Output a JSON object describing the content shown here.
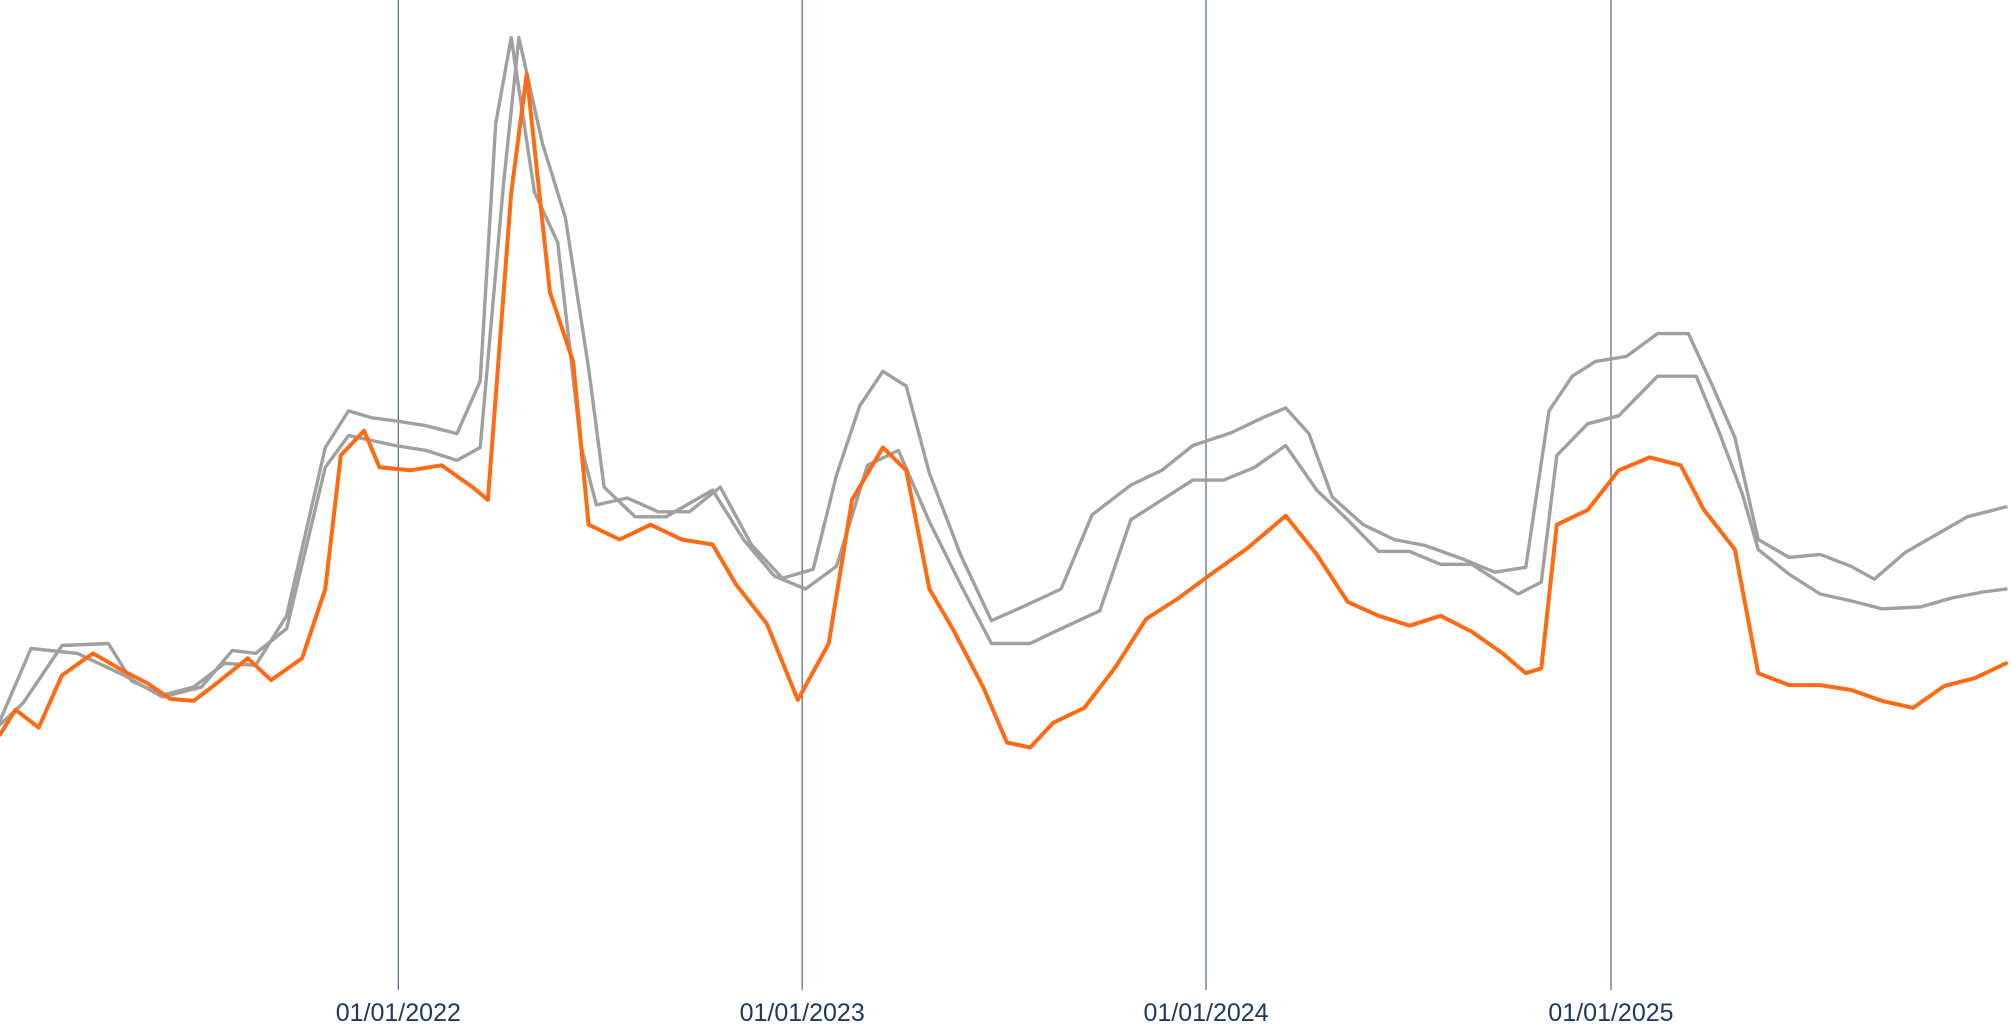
{
  "chart_data": {
    "type": "line",
    "title": "",
    "xlabel": "",
    "ylabel": "",
    "x_axis": {
      "scale": "time",
      "domain": [
        "2021-01-06",
        "2025-12-24"
      ],
      "ticks": [
        {
          "date": "2022-01-01",
          "label": "01/01/2022"
        },
        {
          "date": "2023-01-01",
          "label": "01/01/2023"
        },
        {
          "date": "2024-01-01",
          "label": "01/01/2024"
        },
        {
          "date": "2025-01-01",
          "label": "01/01/2025"
        }
      ]
    },
    "ylim": [
      0,
      1000
    ],
    "y_axis_labels_visible": false,
    "gridlines": "vertical at x ticks",
    "legend": "none",
    "colors": {
      "highlight": "#FF6A13",
      "reference": "#A0A0A0",
      "gridline": "#5E7287",
      "tick_text": "#1F3A60"
    },
    "series": [
      {
        "color": "#A0A0A0",
        "points": [
          [
            "2021-01-06",
            268
          ],
          [
            "2021-01-27",
            290
          ],
          [
            "2021-03-03",
            348
          ],
          [
            "2021-04-14",
            350
          ],
          [
            "2021-05-05",
            312
          ],
          [
            "2021-06-02",
            298
          ],
          [
            "2021-06-30",
            306
          ],
          [
            "2021-07-28",
            330
          ],
          [
            "2021-08-25",
            328
          ],
          [
            "2021-09-22",
            378
          ],
          [
            "2021-10-27",
            548
          ],
          [
            "2021-11-17",
            585
          ],
          [
            "2021-12-08",
            578
          ],
          [
            "2021-12-29",
            575
          ],
          [
            "2022-01-26",
            570
          ],
          [
            "2022-02-23",
            562
          ],
          [
            "2022-03-16",
            615
          ],
          [
            "2022-03-30",
            875
          ],
          [
            "2022-04-13",
            962
          ],
          [
            "2022-05-04",
            806
          ],
          [
            "2022-05-25",
            755
          ],
          [
            "2022-06-15",
            550
          ],
          [
            "2022-06-29",
            490
          ],
          [
            "2022-07-27",
            497
          ],
          [
            "2022-08-24",
            483
          ],
          [
            "2022-09-21",
            483
          ],
          [
            "2022-10-19",
            508
          ],
          [
            "2022-11-16",
            450
          ],
          [
            "2022-12-14",
            416
          ],
          [
            "2023-01-11",
            425
          ],
          [
            "2023-02-01",
            520
          ],
          [
            "2023-02-22",
            590
          ],
          [
            "2023-03-15",
            625
          ],
          [
            "2023-04-05",
            610
          ],
          [
            "2023-04-26",
            522
          ],
          [
            "2023-05-24",
            440
          ],
          [
            "2023-06-21",
            373
          ],
          [
            "2023-07-19",
            387
          ],
          [
            "2023-08-23",
            405
          ],
          [
            "2023-09-20",
            480
          ],
          [
            "2023-10-25",
            510
          ],
          [
            "2023-11-22",
            525
          ],
          [
            "2023-12-20",
            550
          ],
          [
            "2024-01-24",
            563
          ],
          [
            "2024-02-21",
            578
          ],
          [
            "2024-03-13",
            588
          ],
          [
            "2024-04-03",
            562
          ],
          [
            "2024-04-24",
            498
          ],
          [
            "2024-05-22",
            470
          ],
          [
            "2024-06-19",
            455
          ],
          [
            "2024-07-17",
            449
          ],
          [
            "2024-08-21",
            435
          ],
          [
            "2024-09-18",
            422
          ],
          [
            "2024-10-16",
            427
          ],
          [
            "2024-11-06",
            585
          ],
          [
            "2024-11-27",
            620
          ],
          [
            "2024-12-18",
            635
          ],
          [
            "2025-01-15",
            640
          ],
          [
            "2025-02-12",
            663
          ],
          [
            "2025-03-12",
            663
          ],
          [
            "2025-04-02",
            612
          ],
          [
            "2025-04-23",
            558
          ],
          [
            "2025-05-14",
            455
          ],
          [
            "2025-06-11",
            437
          ],
          [
            "2025-07-09",
            440
          ],
          [
            "2025-08-06",
            428
          ],
          [
            "2025-08-27",
            415
          ],
          [
            "2025-09-24",
            442
          ],
          [
            "2025-10-22",
            460
          ],
          [
            "2025-11-19",
            478
          ],
          [
            "2025-12-24",
            488
          ]
        ]
      },
      {
        "color": "#A0A0A0",
        "points": [
          [
            "2021-01-06",
            272
          ],
          [
            "2021-02-03",
            345
          ],
          [
            "2021-03-17",
            340
          ],
          [
            "2021-04-28",
            318
          ],
          [
            "2021-06-02",
            296
          ],
          [
            "2021-07-07",
            306
          ],
          [
            "2021-08-04",
            343
          ],
          [
            "2021-08-25",
            340
          ],
          [
            "2021-09-22",
            365
          ],
          [
            "2021-10-27",
            528
          ],
          [
            "2021-11-17",
            560
          ],
          [
            "2021-12-08",
            555
          ],
          [
            "2021-12-29",
            550
          ],
          [
            "2022-01-26",
            545
          ],
          [
            "2022-02-23",
            535
          ],
          [
            "2022-03-16",
            548
          ],
          [
            "2022-04-06",
            813
          ],
          [
            "2022-04-20",
            962
          ],
          [
            "2022-05-11",
            856
          ],
          [
            "2022-06-01",
            780
          ],
          [
            "2022-06-22",
            628
          ],
          [
            "2022-07-06",
            508
          ],
          [
            "2022-08-03",
            478
          ],
          [
            "2022-08-31",
            478
          ],
          [
            "2022-10-12",
            505
          ],
          [
            "2022-11-09",
            455
          ],
          [
            "2022-12-07",
            418
          ],
          [
            "2023-01-04",
            405
          ],
          [
            "2023-02-01",
            428
          ],
          [
            "2023-03-01",
            530
          ],
          [
            "2023-03-29",
            545
          ],
          [
            "2023-04-26",
            473
          ],
          [
            "2023-05-24",
            410
          ],
          [
            "2023-06-21",
            350
          ],
          [
            "2023-07-26",
            350
          ],
          [
            "2023-08-23",
            365
          ],
          [
            "2023-09-27",
            383
          ],
          [
            "2023-10-25",
            475
          ],
          [
            "2023-11-22",
            495
          ],
          [
            "2023-12-20",
            515
          ],
          [
            "2024-01-17",
            515
          ],
          [
            "2024-02-14",
            528
          ],
          [
            "2024-03-13",
            550
          ],
          [
            "2024-04-10",
            505
          ],
          [
            "2024-05-08",
            475
          ],
          [
            "2024-06-05",
            443
          ],
          [
            "2024-07-03",
            443
          ],
          [
            "2024-07-31",
            430
          ],
          [
            "2024-08-28",
            430
          ],
          [
            "2024-10-09",
            400
          ],
          [
            "2024-10-30",
            412
          ],
          [
            "2024-11-13",
            540
          ],
          [
            "2024-12-11",
            572
          ],
          [
            "2025-01-08",
            580
          ],
          [
            "2025-02-12",
            620
          ],
          [
            "2025-03-19",
            620
          ],
          [
            "2025-04-09",
            563
          ],
          [
            "2025-04-30",
            500
          ],
          [
            "2025-05-14",
            445
          ],
          [
            "2025-06-11",
            420
          ],
          [
            "2025-07-09",
            400
          ],
          [
            "2025-08-06",
            393
          ],
          [
            "2025-09-03",
            385
          ],
          [
            "2025-10-08",
            387
          ],
          [
            "2025-11-05",
            396
          ],
          [
            "2025-12-03",
            402
          ],
          [
            "2025-12-24",
            405
          ]
        ]
      },
      {
        "color": "#FF6A13",
        "points": [
          [
            "2021-01-06",
            258
          ],
          [
            "2021-01-20",
            283
          ],
          [
            "2021-02-10",
            265
          ],
          [
            "2021-03-03",
            318
          ],
          [
            "2021-03-31",
            340
          ],
          [
            "2021-04-28",
            322
          ],
          [
            "2021-05-19",
            310
          ],
          [
            "2021-06-09",
            294
          ],
          [
            "2021-06-30",
            292
          ],
          [
            "2021-07-21",
            310
          ],
          [
            "2021-08-18",
            335
          ],
          [
            "2021-09-08",
            313
          ],
          [
            "2021-10-06",
            335
          ],
          [
            "2021-10-27",
            405
          ],
          [
            "2021-11-10",
            540
          ],
          [
            "2021-12-01",
            565
          ],
          [
            "2021-12-15",
            528
          ],
          [
            "2022-01-12",
            525
          ],
          [
            "2022-02-09",
            530
          ],
          [
            "2022-03-09",
            508
          ],
          [
            "2022-03-23",
            495
          ],
          [
            "2022-04-13",
            805
          ],
          [
            "2022-04-27",
            925
          ],
          [
            "2022-05-18",
            705
          ],
          [
            "2022-06-08",
            635
          ],
          [
            "2022-06-22",
            470
          ],
          [
            "2022-07-20",
            455
          ],
          [
            "2022-08-17",
            470
          ],
          [
            "2022-09-14",
            455
          ],
          [
            "2022-10-12",
            450
          ],
          [
            "2022-11-02",
            410
          ],
          [
            "2022-11-30",
            370
          ],
          [
            "2022-12-28",
            293
          ],
          [
            "2023-01-25",
            350
          ],
          [
            "2023-02-15",
            495
          ],
          [
            "2023-03-15",
            548
          ],
          [
            "2023-04-05",
            525
          ],
          [
            "2023-04-26",
            405
          ],
          [
            "2023-05-17",
            365
          ],
          [
            "2023-06-14",
            305
          ],
          [
            "2023-07-05",
            250
          ],
          [
            "2023-07-26",
            245
          ],
          [
            "2023-08-16",
            270
          ],
          [
            "2023-09-13",
            285
          ],
          [
            "2023-10-11",
            326
          ],
          [
            "2023-11-08",
            375
          ],
          [
            "2023-12-06",
            395
          ],
          [
            "2024-01-03",
            418
          ],
          [
            "2024-02-07",
            446
          ],
          [
            "2024-03-13",
            479
          ],
          [
            "2024-04-10",
            440
          ],
          [
            "2024-05-08",
            392
          ],
          [
            "2024-06-05",
            378
          ],
          [
            "2024-07-03",
            368
          ],
          [
            "2024-07-31",
            378
          ],
          [
            "2024-08-28",
            362
          ],
          [
            "2024-09-25",
            340
          ],
          [
            "2024-10-16",
            320
          ],
          [
            "2024-10-30",
            325
          ],
          [
            "2024-11-13",
            470
          ],
          [
            "2024-12-11",
            485
          ],
          [
            "2025-01-08",
            525
          ],
          [
            "2025-02-05",
            538
          ],
          [
            "2025-03-05",
            530
          ],
          [
            "2025-03-26",
            485
          ],
          [
            "2025-04-23",
            445
          ],
          [
            "2025-05-14",
            320
          ],
          [
            "2025-06-11",
            308
          ],
          [
            "2025-07-09",
            308
          ],
          [
            "2025-08-06",
            303
          ],
          [
            "2025-09-03",
            292
          ],
          [
            "2025-10-01",
            285
          ],
          [
            "2025-10-29",
            307
          ],
          [
            "2025-11-26",
            315
          ],
          [
            "2025-12-24",
            330
          ]
        ]
      }
    ]
  }
}
